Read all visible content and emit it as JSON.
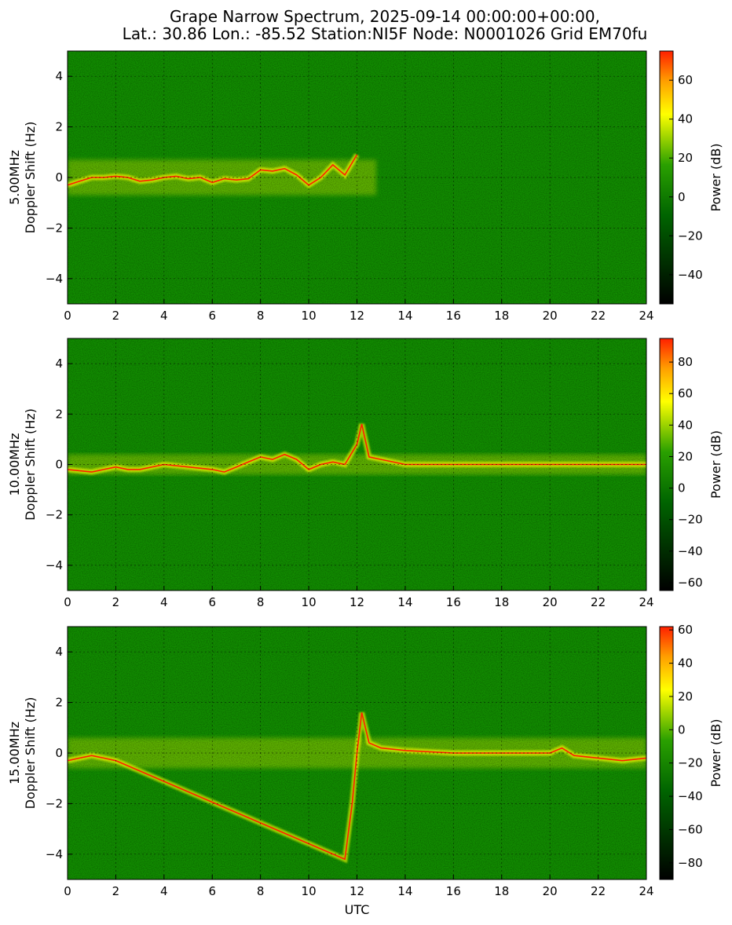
{
  "title": {
    "line1": "Grape Narrow Spectrum, 2025-09-14 00:00:00+00:00,",
    "line2": "Lat.: 30.86 Lon.: -85.52 Station:NI5F Node: N0001026 Grid EM70fu"
  },
  "chart_data": [
    {
      "type": "heatmap",
      "ylabel_line1": "5.00MHz",
      "ylabel_line2": "Doppler Shift (Hz)",
      "xlabel": "",
      "xlim": [
        0,
        24
      ],
      "ylim": [
        -5,
        5
      ],
      "xticks": [
        0,
        2,
        4,
        6,
        8,
        10,
        12,
        14,
        16,
        18,
        20,
        22,
        24
      ],
      "yticks": [
        -4,
        -2,
        0,
        2,
        4
      ],
      "grid": true,
      "colorbar": {
        "label": "Power (dB)",
        "min": -55,
        "max": 75,
        "ticks": [
          -40,
          -20,
          0,
          20,
          40,
          60
        ]
      },
      "trace": {
        "name": "carrier",
        "x": [
          0.0,
          0.5,
          1.0,
          1.5,
          2.0,
          2.5,
          3.0,
          3.5,
          4.0,
          4.5,
          5.0,
          5.5,
          6.0,
          6.5,
          7.0,
          7.5,
          8.0,
          8.5,
          9.0,
          9.5,
          10.0,
          10.5,
          11.0,
          11.5,
          12.0
        ],
        "y": [
          -0.3,
          -0.15,
          0.0,
          0.0,
          0.05,
          0.0,
          -0.15,
          -0.1,
          0.0,
          0.05,
          -0.05,
          0.0,
          -0.2,
          -0.05,
          -0.1,
          -0.05,
          0.3,
          0.25,
          0.35,
          0.1,
          -0.3,
          0.0,
          0.5,
          0.1,
          0.9
        ]
      },
      "spread_band": {
        "x_start": 0,
        "x_end": 12.8,
        "half_width": 0.7
      }
    },
    {
      "type": "heatmap",
      "ylabel_line1": "10.00MHz",
      "ylabel_line2": "Doppler Shift (Hz)",
      "xlabel": "",
      "xlim": [
        0,
        24
      ],
      "ylim": [
        -5,
        5
      ],
      "xticks": [
        0,
        2,
        4,
        6,
        8,
        10,
        12,
        14,
        16,
        18,
        20,
        22,
        24
      ],
      "yticks": [
        -4,
        -2,
        0,
        2,
        4
      ],
      "grid": true,
      "colorbar": {
        "label": "Power (dB)",
        "min": -65,
        "max": 95,
        "ticks": [
          -60,
          -40,
          -20,
          0,
          20,
          40,
          60,
          80
        ]
      },
      "trace": {
        "name": "carrier",
        "x": [
          0.0,
          1.0,
          1.5,
          2.0,
          2.5,
          3.0,
          4.0,
          5.0,
          6.0,
          6.5,
          7.0,
          7.5,
          8.0,
          8.5,
          9.0,
          9.5,
          10.0,
          10.5,
          11.0,
          11.5,
          12.0,
          12.2,
          12.5,
          13.0,
          14.0,
          16.0,
          20.0,
          24.0
        ],
        "y": [
          -0.2,
          -0.3,
          -0.2,
          -0.1,
          -0.2,
          -0.2,
          0.0,
          -0.1,
          -0.2,
          -0.3,
          -0.1,
          0.1,
          0.3,
          0.2,
          0.4,
          0.2,
          -0.2,
          0.0,
          0.1,
          0.0,
          0.8,
          1.6,
          0.3,
          0.2,
          0.0,
          0.0,
          0.0,
          0.0
        ]
      },
      "spread_band": {
        "x_start": 0,
        "x_end": 24,
        "half_width": 0.4
      }
    },
    {
      "type": "heatmap",
      "ylabel_line1": "15.00MHz",
      "ylabel_line2": "Doppler Shift (Hz)",
      "xlabel": "UTC",
      "xlim": [
        0,
        24
      ],
      "ylim": [
        -5,
        5
      ],
      "xticks": [
        0,
        2,
        4,
        6,
        8,
        10,
        12,
        14,
        16,
        18,
        20,
        22,
        24
      ],
      "yticks": [
        -4,
        -2,
        0,
        2,
        4
      ],
      "grid": true,
      "colorbar": {
        "label": "Power (dB)",
        "min": -90,
        "max": 62,
        "ticks": [
          -80,
          -60,
          -40,
          -20,
          0,
          20,
          40,
          60
        ]
      },
      "trace": {
        "name": "carrier",
        "x": [
          0.0,
          0.5,
          1.0,
          1.5,
          2.0,
          11.5,
          11.8,
          12.0,
          12.2,
          12.5,
          13.0,
          14.0,
          16.0,
          18.0,
          20.0,
          20.5,
          21.0,
          22.0,
          23.0,
          24.0
        ],
        "y": [
          -0.3,
          -0.2,
          -0.1,
          -0.2,
          -0.3,
          -4.2,
          -2.0,
          0.0,
          1.6,
          0.4,
          0.2,
          0.1,
          0.0,
          0.0,
          0.0,
          0.2,
          -0.1,
          -0.2,
          -0.3,
          -0.2
        ]
      },
      "spread_band": {
        "x_start": 0,
        "x_end": 24,
        "half_width": 0.6
      }
    }
  ],
  "colors": {
    "background_green": "#118c00",
    "low": "#000000",
    "mid": "#00a000",
    "high_yellow": "#ffff00",
    "peak_red": "#ff2000"
  }
}
